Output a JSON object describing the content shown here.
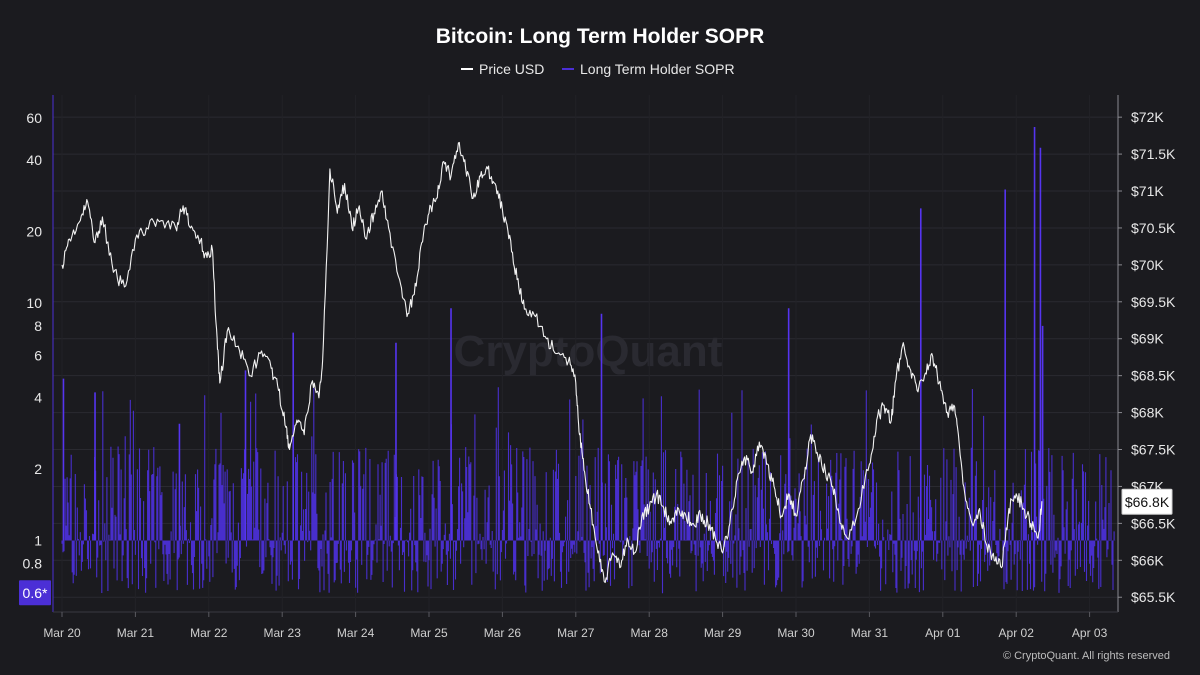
{
  "chart_data": {
    "type": "line",
    "title": "Bitcoin: Long Term Holder SOPR",
    "legend": [
      {
        "name": "Price USD",
        "color": "#ffffff"
      },
      {
        "name": "Long Term Holder SOPR",
        "color": "#4b2fd6"
      }
    ],
    "x_ticks": [
      "Mar 20",
      "Mar 21",
      "Mar 22",
      "Mar 23",
      "Mar 24",
      "Mar 25",
      "Mar 26",
      "Mar 27",
      "Mar 28",
      "Mar 29",
      "Mar 30",
      "Mar 31",
      "Apr 01",
      "Apr 02",
      "Apr 03"
    ],
    "x_range_days": [
      0,
      14.35
    ],
    "left_axis": {
      "scale": "log",
      "range": [
        0.5,
        75
      ],
      "ticks": [
        {
          "value": 0.8,
          "label": "0.8"
        },
        {
          "value": 1,
          "label": "1"
        },
        {
          "value": 2,
          "label": "2"
        },
        {
          "value": 4,
          "label": "4"
        },
        {
          "value": 6,
          "label": "6"
        },
        {
          "value": 8,
          "label": "8"
        },
        {
          "value": 10,
          "label": "10"
        },
        {
          "value": 20,
          "label": "20"
        },
        {
          "value": 40,
          "label": "40"
        },
        {
          "value": 60,
          "label": "60"
        }
      ],
      "current_badge": {
        "value": 0.6,
        "label": "0.6*"
      }
    },
    "right_axis": {
      "scale": "linear",
      "range": [
        65300,
        72300
      ],
      "ticks": [
        {
          "value": 65500,
          "label": "$65.5K"
        },
        {
          "value": 66000,
          "label": "$66K"
        },
        {
          "value": 66500,
          "label": "$66.5K"
        },
        {
          "value": 67000,
          "label": "$67K"
        },
        {
          "value": 67500,
          "label": "$67.5K"
        },
        {
          "value": 68000,
          "label": "$68K"
        },
        {
          "value": 68500,
          "label": "$68.5K"
        },
        {
          "value": 69000,
          "label": "$69K"
        },
        {
          "value": 69500,
          "label": "$69.5K"
        },
        {
          "value": 70000,
          "label": "$70K"
        },
        {
          "value": 70500,
          "label": "$70.5K"
        },
        {
          "value": 71000,
          "label": "$71K"
        },
        {
          "value": 71500,
          "label": "$71.5K"
        },
        {
          "value": 72000,
          "label": "$72K"
        }
      ],
      "current_badge": {
        "value": 66800,
        "label": "$66.8K"
      }
    },
    "series": [
      {
        "name": "Price USD",
        "axis": "right",
        "points": [
          [
            0.0,
            70000
          ],
          [
            0.1,
            70350
          ],
          [
            0.25,
            70600
          ],
          [
            0.35,
            70850
          ],
          [
            0.45,
            70300
          ],
          [
            0.55,
            70650
          ],
          [
            0.7,
            69900
          ],
          [
            0.85,
            69700
          ],
          [
            1.0,
            70350
          ],
          [
            1.15,
            70500
          ],
          [
            1.35,
            70600
          ],
          [
            1.55,
            70500
          ],
          [
            1.65,
            70800
          ],
          [
            1.75,
            70500
          ],
          [
            1.85,
            70400
          ],
          [
            1.95,
            70150
          ],
          [
            2.05,
            70200
          ],
          [
            2.1,
            69200
          ],
          [
            2.15,
            68400
          ],
          [
            2.25,
            69100
          ],
          [
            2.4,
            68900
          ],
          [
            2.55,
            68500
          ],
          [
            2.7,
            68800
          ],
          [
            2.85,
            68600
          ],
          [
            2.95,
            68300
          ],
          [
            3.05,
            67800
          ],
          [
            3.1,
            67500
          ],
          [
            3.2,
            67900
          ],
          [
            3.3,
            67700
          ],
          [
            3.4,
            68400
          ],
          [
            3.5,
            68200
          ],
          [
            3.55,
            68700
          ],
          [
            3.65,
            71300
          ],
          [
            3.75,
            70700
          ],
          [
            3.85,
            71100
          ],
          [
            3.95,
            70500
          ],
          [
            4.05,
            70800
          ],
          [
            4.15,
            70350
          ],
          [
            4.25,
            70700
          ],
          [
            4.35,
            71000
          ],
          [
            4.45,
            70500
          ],
          [
            4.6,
            69800
          ],
          [
            4.7,
            69300
          ],
          [
            4.8,
            69600
          ],
          [
            4.9,
            70300
          ],
          [
            5.0,
            70700
          ],
          [
            5.1,
            70900
          ],
          [
            5.2,
            71400
          ],
          [
            5.3,
            71200
          ],
          [
            5.4,
            71650
          ],
          [
            5.5,
            71300
          ],
          [
            5.6,
            70900
          ],
          [
            5.7,
            71200
          ],
          [
            5.8,
            71300
          ],
          [
            5.9,
            71100
          ],
          [
            6.0,
            70750
          ],
          [
            6.1,
            70400
          ],
          [
            6.2,
            69800
          ],
          [
            6.3,
            69400
          ],
          [
            6.45,
            69300
          ],
          [
            6.6,
            69000
          ],
          [
            6.75,
            68800
          ],
          [
            6.9,
            68700
          ],
          [
            7.0,
            68400
          ],
          [
            7.05,
            67700
          ],
          [
            7.12,
            67200
          ],
          [
            7.2,
            66700
          ],
          [
            7.3,
            66100
          ],
          [
            7.4,
            65700
          ],
          [
            7.5,
            66100
          ],
          [
            7.6,
            65900
          ],
          [
            7.7,
            66300
          ],
          [
            7.8,
            66100
          ],
          [
            7.9,
            66600
          ],
          [
            8.0,
            66700
          ],
          [
            8.1,
            66900
          ],
          [
            8.2,
            66700
          ],
          [
            8.3,
            66500
          ],
          [
            8.4,
            66700
          ],
          [
            8.5,
            66600
          ],
          [
            8.6,
            66500
          ],
          [
            8.7,
            66600
          ],
          [
            8.8,
            66500
          ],
          [
            8.9,
            66300
          ],
          [
            9.0,
            66100
          ],
          [
            9.1,
            66500
          ],
          [
            9.2,
            67100
          ],
          [
            9.3,
            67400
          ],
          [
            9.4,
            67200
          ],
          [
            9.5,
            67600
          ],
          [
            9.6,
            67300
          ],
          [
            9.7,
            67000
          ],
          [
            9.8,
            66600
          ],
          [
            9.9,
            66900
          ],
          [
            10.0,
            66600
          ],
          [
            10.1,
            67100
          ],
          [
            10.2,
            67700
          ],
          [
            10.3,
            67400
          ],
          [
            10.4,
            67200
          ],
          [
            10.5,
            67000
          ],
          [
            10.6,
            66500
          ],
          [
            10.7,
            66300
          ],
          [
            10.85,
            66700
          ],
          [
            11.0,
            67300
          ],
          [
            11.1,
            67900
          ],
          [
            11.2,
            68100
          ],
          [
            11.3,
            67900
          ],
          [
            11.35,
            68400
          ],
          [
            11.45,
            68900
          ],
          [
            11.55,
            68600
          ],
          [
            11.65,
            68300
          ],
          [
            11.75,
            68500
          ],
          [
            11.85,
            68800
          ],
          [
            11.95,
            68400
          ],
          [
            12.05,
            68000
          ],
          [
            12.15,
            68100
          ],
          [
            12.2,
            67800
          ],
          [
            12.3,
            66900
          ],
          [
            12.4,
            66500
          ],
          [
            12.5,
            66700
          ],
          [
            12.6,
            66200
          ],
          [
            12.7,
            66000
          ],
          [
            12.8,
            65900
          ],
          [
            12.9,
            66700
          ],
          [
            13.0,
            66900
          ],
          [
            13.1,
            66700
          ],
          [
            13.2,
            66500
          ],
          [
            13.3,
            66300
          ],
          [
            13.35,
            66800
          ]
        ]
      },
      {
        "name": "Long Term Holder SOPR",
        "axis": "left",
        "style": "bars",
        "baseline": 1,
        "typical_range": [
          0.6,
          2.5
        ],
        "spikes": [
          [
            0.02,
            4.8
          ],
          [
            0.45,
            4.2
          ],
          [
            1.6,
            3.1
          ],
          [
            2.5,
            5.2
          ],
          [
            3.15,
            7.5
          ],
          [
            4.55,
            6.8
          ],
          [
            5.3,
            9.5
          ],
          [
            7.35,
            9.0
          ],
          [
            9.9,
            9.5
          ],
          [
            11.7,
            25.0
          ],
          [
            12.85,
            30.0
          ],
          [
            13.25,
            55.0
          ],
          [
            13.33,
            45.0
          ],
          [
            13.36,
            8.0
          ]
        ]
      }
    ],
    "watermark": "CryptoQuant",
    "copyright": "© CryptoQuant. All rights reserved"
  }
}
